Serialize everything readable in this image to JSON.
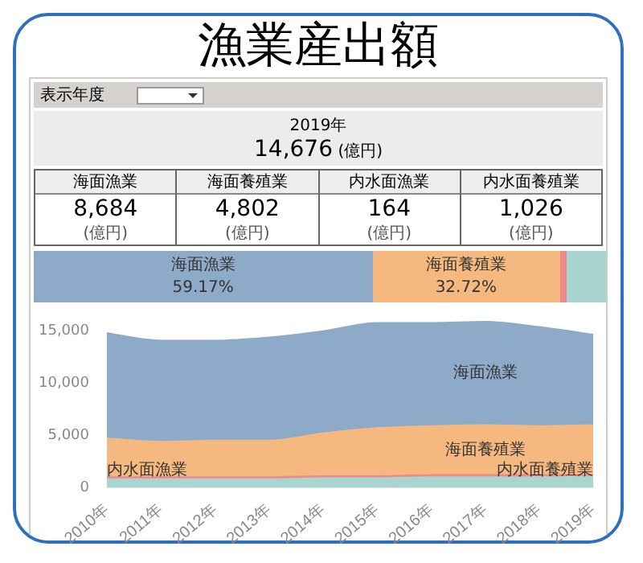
{
  "chart_data": [
    {
      "type": "other",
      "title": "漁業産出額",
      "categories": [
        "海面漁業",
        "海面養殖業",
        "内水面漁業",
        "内水面養殖業"
      ],
      "annotations": [
        "表示年度",
        "2019年",
        "14,676",
        "(億円)",
        "8,684",
        "4,802",
        "164",
        "1,026"
      ]
    },
    {
      "type": "bar",
      "orientation": "horizontal",
      "stacked": true,
      "categories": [
        null
      ],
      "xlim": [
        0,
        100
      ],
      "tick_labels": false,
      "series": [
        {
          "name": "海面漁業",
          "color": "#8eaac9",
          "values": [
            59.17
          ],
          "value_labels": [
            "59.17%"
          ]
        },
        {
          "name": "海面養殖業",
          "color": "#f5b97f",
          "values": [
            32.72
          ],
          "value_labels": [
            "32.72%"
          ]
        },
        {
          "color": "#ee8a8a",
          "values": [
            1.12
          ]
        },
        {
          "color": "#a8d5d0",
          "values": [
            6.99
          ]
        }
      ]
    },
    {
      "type": "area",
      "stacked": true,
      "categories": [
        "2010年",
        "2011年",
        "2012年",
        "2013年",
        "2014年",
        "2015年",
        "2016年",
        "2017年",
        "2018年",
        "2019年"
      ],
      "ylim": [
        0,
        16000
      ],
      "yticks": [
        0,
        {
          "value": 5000,
          "label": "5,000"
        },
        {
          "value": 10000,
          "label": "10,000"
        },
        {
          "value": 15000,
          "label": "15,000"
        }
      ],
      "series": [
        {
          "name": "内水面養殖業",
          "color": "#a8d5d0",
          "values": [
            800,
            800,
            800,
            800,
            900,
            900,
            1000,
            1000,
            1000,
            1026
          ]
        },
        {
          "name": "内水面漁業",
          "color": "#ee8a8a",
          "values": [
            200,
            200,
            200,
            200,
            200,
            200,
            200,
            200,
            200,
            164
          ]
        },
        {
          "name": "海面養殖業",
          "color": "#f5b97f",
          "values": [
            3700,
            3400,
            3500,
            3500,
            4100,
            4600,
            4700,
            4800,
            4700,
            4802
          ]
        },
        {
          "name": "海面漁業",
          "color": "#8eaac9",
          "values": [
            10100,
            9700,
            9600,
            9900,
            9800,
            10100,
            9900,
            9900,
            9500,
            8684
          ]
        }
      ]
    }
  ]
}
